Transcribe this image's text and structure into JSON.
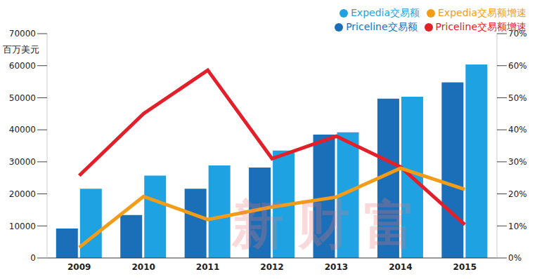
{
  "chart_data": {
    "type": "bar",
    "ylabel": "百万美元",
    "annotations": [
      "新财富"
    ],
    "categories": [
      "2009",
      "2010",
      "2011",
      "2012",
      "2013",
      "2014",
      "2015"
    ],
    "series": [
      {
        "name": "Priceline交易额",
        "type": "bar",
        "color": "#1b6fb8",
        "values": [
          9200,
          13400,
          21600,
          28200,
          38500,
          49700,
          54800
        ]
      },
      {
        "name": "Expedia交易额",
        "type": "bar",
        "color": "#1ea2e2",
        "values": [
          21600,
          25700,
          28900,
          33500,
          39200,
          50300,
          60400
        ]
      },
      {
        "name": "Priceline交易额增速",
        "type": "line",
        "axis": "y2",
        "color": "#e3202a",
        "values": [
          25.7,
          45,
          58.6,
          31,
          38,
          28.4,
          10.4
        ]
      },
      {
        "name": "Expedia交易额增速",
        "type": "line",
        "axis": "y2",
        "color": "#f39c18",
        "values": [
          3.3,
          19.2,
          12,
          15.9,
          19,
          28,
          21.4
        ]
      }
    ],
    "ylim": [
      0,
      70000
    ],
    "yticks": [
      0,
      10000,
      20000,
      30000,
      40000,
      50000,
      60000,
      70000
    ],
    "y2lim": [
      0,
      70
    ],
    "y2ticks": [
      {
        "value": 0,
        "label": "0%"
      },
      {
        "value": 10,
        "label": "10%"
      },
      {
        "value": 20,
        "label": "20%"
      },
      {
        "value": 30,
        "label": "30%"
      },
      {
        "value": 40,
        "label": "40%"
      },
      {
        "value": 50,
        "label": "50%"
      },
      {
        "value": 60,
        "label": "60%"
      },
      {
        "value": 70,
        "label": "70%"
      }
    ],
    "grid": false,
    "legend": "top right"
  }
}
